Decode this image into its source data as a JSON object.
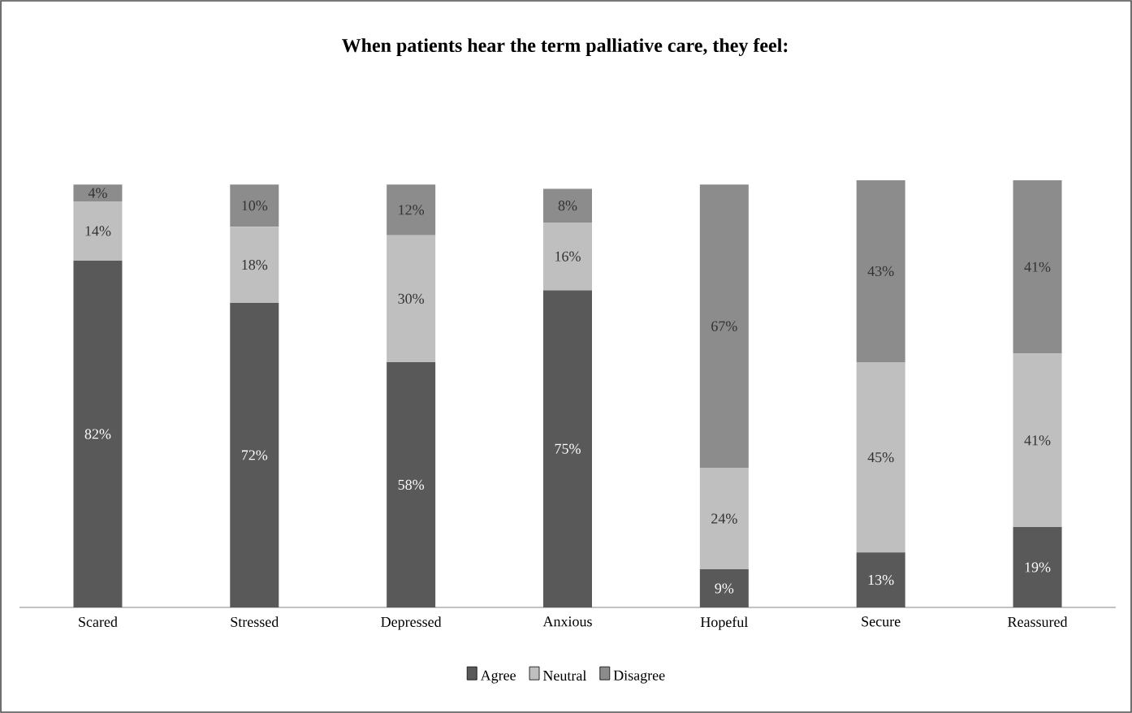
{
  "chart_data": {
    "type": "bar",
    "stacked": true,
    "title": "When patients hear the term palliative care, they feel:",
    "categories": [
      "Scared",
      "Stressed",
      "Depressed",
      "Anxious",
      "Hopeful",
      "Secure",
      "Reassured"
    ],
    "legend": "bottom",
    "series": [
      {
        "name": "Agree",
        "color": "#595959",
        "values": [
          82,
          72,
          58,
          75,
          9,
          13,
          19
        ],
        "value_labels": [
          "82%",
          "72%",
          "58%",
          "75%",
          "9%",
          "13%",
          "19%"
        ]
      },
      {
        "name": "Neutral",
        "color": "#bfbfbf",
        "values": [
          14,
          18,
          30,
          16,
          24,
          45,
          41
        ],
        "value_labels": [
          "14%",
          "18%",
          "30%",
          "16%",
          "24%",
          "45%",
          "41%"
        ]
      },
      {
        "name": "Disagree",
        "color": "#8c8c8c",
        "values": [
          4,
          10,
          12,
          8,
          67,
          43,
          41
        ],
        "value_labels": [
          "4%",
          "10%",
          "12%",
          "8%",
          "67%",
          "43%",
          "41%"
        ]
      }
    ]
  }
}
